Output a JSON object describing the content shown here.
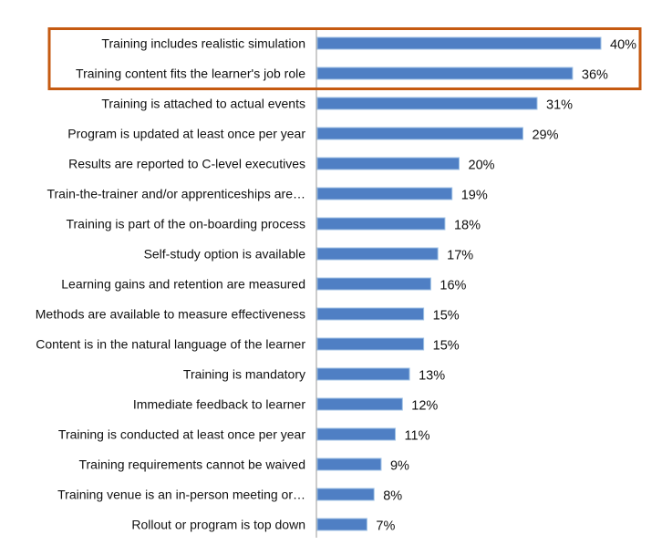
{
  "chart_data": {
    "type": "bar",
    "orientation": "horizontal",
    "title": "",
    "xlabel": "",
    "ylabel": "",
    "xlim": [
      0,
      40
    ],
    "grid": false,
    "legend": "none",
    "bar_color": "#4f7fc4",
    "highlight_color": "#c55a11",
    "highlighted_categories": [
      0,
      1
    ],
    "categories": [
      "Training includes realistic simulation",
      "Training content fits the learner's job role",
      "Training is attached to actual events",
      "Program is updated at least once per year",
      "Results are reported to C-level executives",
      "Train-the-trainer and/or apprenticeships are…",
      "Training is part of the on-boarding process",
      "Self-study option is available",
      "Learning gains and retention are measured",
      "Methods are available to measure effectiveness",
      "Content is in the natural language of the learner",
      "Training is mandatory",
      "Immediate feedback to learner",
      "Training is conducted at least once per year",
      "Training requirements cannot be waived",
      "Training venue is an in-person meeting or…",
      "Rollout or program is top down"
    ],
    "values": [
      40,
      36,
      31,
      29,
      20,
      19,
      18,
      17,
      16,
      15,
      15,
      13,
      12,
      11,
      9,
      8,
      7
    ],
    "value_labels": [
      "40%",
      "36%",
      "31%",
      "29%",
      "20%",
      "19%",
      "18%",
      "17%",
      "16%",
      "15%",
      "15%",
      "13%",
      "12%",
      "11%",
      "9%",
      "8%",
      "7%"
    ]
  }
}
